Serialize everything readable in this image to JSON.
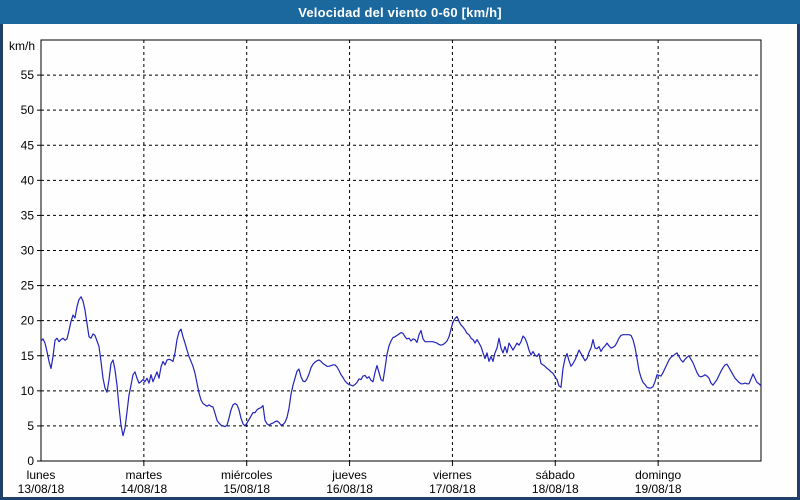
{
  "window": {
    "title": "Velocidad del viento 0-60 [km/h]",
    "titlebar_color": "#1a689e",
    "frame_color": "#20406a"
  },
  "chart_data": {
    "type": "line",
    "title": "Velocidad del viento 0-60 [km/h]",
    "ylabel": "km/h",
    "xlabel": "",
    "ylim": [
      0,
      60
    ],
    "y_tick_step": 5,
    "grid": "dashed",
    "legend_position": "none",
    "x_span_days": 7,
    "x_categories": [
      {
        "day": "lunes",
        "date": "13/08/18"
      },
      {
        "day": "martes",
        "date": "14/08/18"
      },
      {
        "day": "miércoles",
        "date": "15/08/18"
      },
      {
        "day": "jueves",
        "date": "16/08/18"
      },
      {
        "day": "viernes",
        "date": "17/08/18"
      },
      {
        "day": "sábado",
        "date": "18/08/18"
      },
      {
        "day": "domingo",
        "date": "19/08/18"
      }
    ],
    "series": [
      {
        "name": "Velocidad del viento",
        "color": "#2424bd",
        "sampling": "uniform, 361 samples across the 7 labeled days",
        "values": [
          17.1,
          17.4,
          16.8,
          15.6,
          14.2,
          13.2,
          14.9,
          17.2,
          17.5,
          17.0,
          17.3,
          17.5,
          17.2,
          17.4,
          18.6,
          19.9,
          20.8,
          20.4,
          22.0,
          23.0,
          23.4,
          22.8,
          21.5,
          19.6,
          17.7,
          17.5,
          18.1,
          17.9,
          17.1,
          16.3,
          14.2,
          11.8,
          10.4,
          9.8,
          11.6,
          13.9,
          14.4,
          13.0,
          10.8,
          7.7,
          5.1,
          3.6,
          4.7,
          7.0,
          9.4,
          10.8,
          12.3,
          12.7,
          11.8,
          11.1,
          11.3,
          11.6,
          11.3,
          11.8,
          11.1,
          12.3,
          11.3,
          12.0,
          12.7,
          11.8,
          13.4,
          14.2,
          13.7,
          14.4,
          14.5,
          14.4,
          14.2,
          15.4,
          17.3,
          18.4,
          18.8,
          17.7,
          16.8,
          15.8,
          14.9,
          14.2,
          13.5,
          12.5,
          11.1,
          9.7,
          8.7,
          8.2,
          8.0,
          7.8,
          8.0,
          7.8,
          7.7,
          6.8,
          5.8,
          5.4,
          5.1,
          5.0,
          4.9,
          5.1,
          6.1,
          7.3,
          8.0,
          8.2,
          8.0,
          7.3,
          6.1,
          5.3,
          5.0,
          5.4,
          5.9,
          6.4,
          6.9,
          6.9,
          7.3,
          7.5,
          7.6,
          7.9,
          5.8,
          5.3,
          5.1,
          5.3,
          5.4,
          5.6,
          5.7,
          5.5,
          5.1,
          5.2,
          5.5,
          6.2,
          7.5,
          9.5,
          10.8,
          11.8,
          12.8,
          13.1,
          12.0,
          11.4,
          11.3,
          11.7,
          12.4,
          13.3,
          13.8,
          14.1,
          14.3,
          14.4,
          14.2,
          13.9,
          13.7,
          13.5,
          13.5,
          13.6,
          13.7,
          13.7,
          13.4,
          12.9,
          12.3,
          11.9,
          11.4,
          11.1,
          10.9,
          10.8,
          10.7,
          10.9,
          11.2,
          11.7,
          11.6,
          12.1,
          12.2,
          11.8,
          12.0,
          11.5,
          11.3,
          12.6,
          13.6,
          12.6,
          11.6,
          11.4,
          13.2,
          15.2,
          16.4,
          17.1,
          17.6,
          17.7,
          17.9,
          18.1,
          18.3,
          18.2,
          17.7,
          17.4,
          17.5,
          17.1,
          17.4,
          17.3,
          16.9,
          18.0,
          18.6,
          17.4,
          17.0,
          17.0,
          17.0,
          17.0,
          17.0,
          16.9,
          16.8,
          16.6,
          16.5,
          16.6,
          16.8,
          17.1,
          17.7,
          18.8,
          19.8,
          20.3,
          20.6,
          19.9,
          19.4,
          19.1,
          18.7,
          18.2,
          18.0,
          17.5,
          17.3,
          16.8,
          17.3,
          16.8,
          16.3,
          15.4,
          14.6,
          15.4,
          14.2,
          14.9,
          14.2,
          15.4,
          16.1,
          17.5,
          16.1,
          15.4,
          16.3,
          15.4,
          16.8,
          16.3,
          15.8,
          16.3,
          16.8,
          16.5,
          17.0,
          17.8,
          17.5,
          16.8,
          15.8,
          15.1,
          15.6,
          15.1,
          14.9,
          15.3,
          13.9,
          13.7,
          13.5,
          13.2,
          13.0,
          12.7,
          12.5,
          12.0,
          11.6,
          10.7,
          10.5,
          13.2,
          14.6,
          15.3,
          14.3,
          13.5,
          13.9,
          14.4,
          15.1,
          15.8,
          15.3,
          14.8,
          14.3,
          14.6,
          15.5,
          16.1,
          17.3,
          16.1,
          16.0,
          16.3,
          15.6,
          16.1,
          16.4,
          16.8,
          16.4,
          16.1,
          16.2,
          16.4,
          16.9,
          17.5,
          17.9,
          18.0,
          18.0,
          18.0,
          18.0,
          17.9,
          17.3,
          16.2,
          14.6,
          12.9,
          11.9,
          11.2,
          10.9,
          10.5,
          10.4,
          10.4,
          10.6,
          11.3,
          12.3,
          12.2,
          12.1,
          12.6,
          13.2,
          13.8,
          14.4,
          14.8,
          15.0,
          15.2,
          15.4,
          14.9,
          14.4,
          14.1,
          14.5,
          14.8,
          15.0,
          14.5,
          14.0,
          13.3,
          12.6,
          12.1,
          12.0,
          12.1,
          12.3,
          12.1,
          11.8,
          11.1,
          10.8,
          11.2,
          11.6,
          12.2,
          12.8,
          13.3,
          13.7,
          13.8,
          13.3,
          12.8,
          12.3,
          11.8,
          11.5,
          11.2,
          11.0,
          11.0,
          11.1,
          11.0,
          11.0,
          11.7,
          12.4,
          11.8,
          11.2,
          11.0,
          10.7
        ]
      }
    ]
  }
}
